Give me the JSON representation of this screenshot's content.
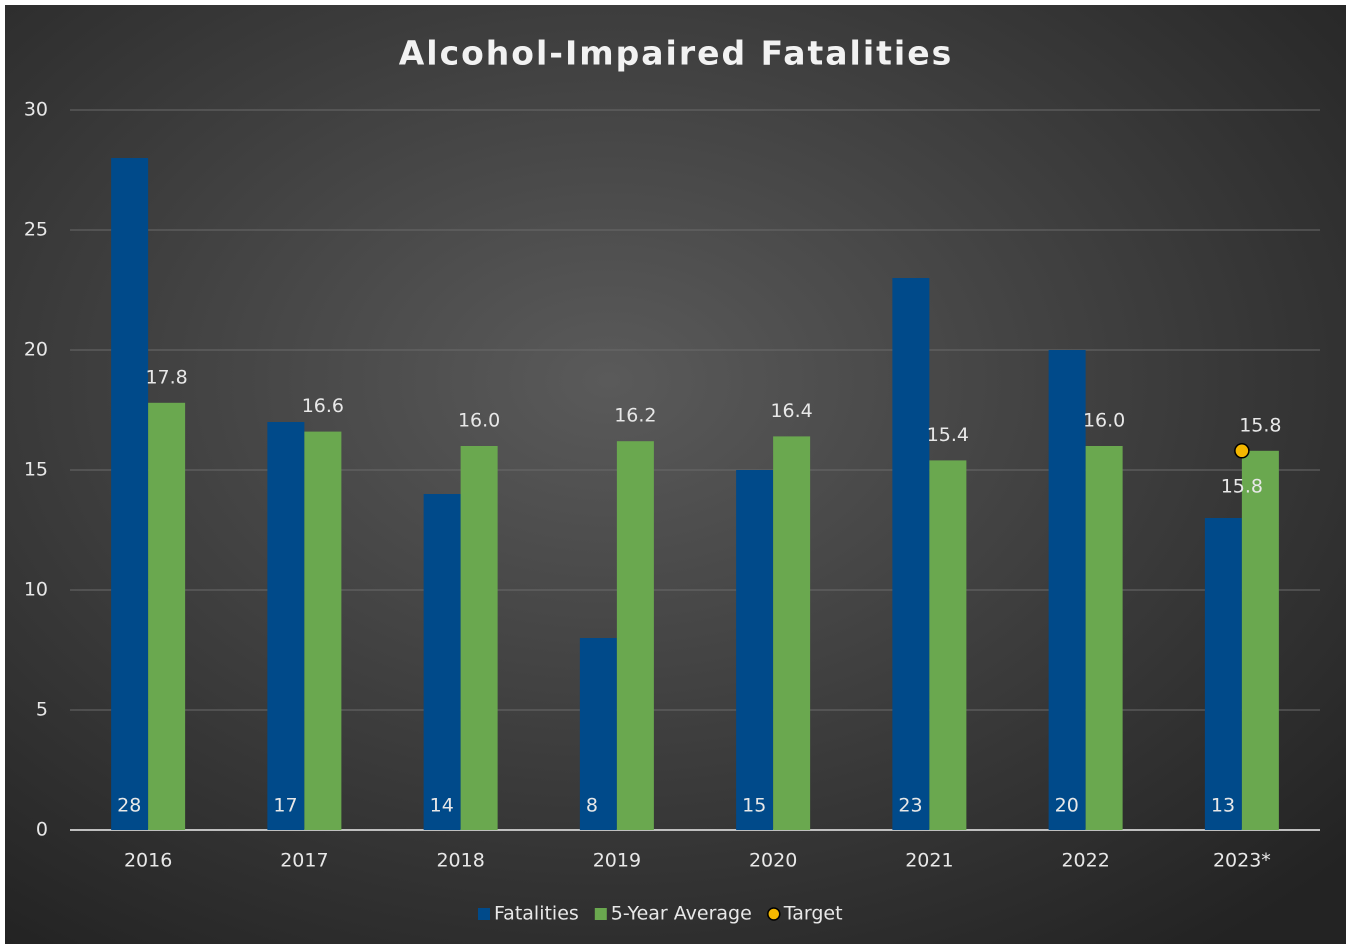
{
  "chart_data": {
    "type": "bar",
    "title": "Alcohol-Impaired Fatalities",
    "categories": [
      "2016",
      "2017",
      "2018",
      "2019",
      "2020",
      "2021",
      "2022",
      "2023*"
    ],
    "series": [
      {
        "name": "Fatalities",
        "color": "#004a8a",
        "values": [
          28,
          17,
          14,
          8,
          15,
          23,
          20,
          13
        ]
      },
      {
        "name": "5-Year Average",
        "color": "#6aa84f",
        "values": [
          17.8,
          16.6,
          16.0,
          16.2,
          16.4,
          15.4,
          16.0,
          15.8
        ],
        "value_labels": [
          "17.8",
          "16.6",
          "16.0",
          "16.2",
          "16.4",
          "15.4",
          "16.0",
          "15.8"
        ]
      },
      {
        "name": "Target",
        "color": "#f5b800",
        "type": "scatter",
        "values": [
          null,
          null,
          null,
          null,
          null,
          null,
          null,
          15.8
        ]
      }
    ],
    "ylim": [
      0,
      30
    ],
    "yticks": [
      0,
      5,
      10,
      15,
      20,
      25,
      30
    ],
    "grid": true,
    "legend": "bottom"
  }
}
